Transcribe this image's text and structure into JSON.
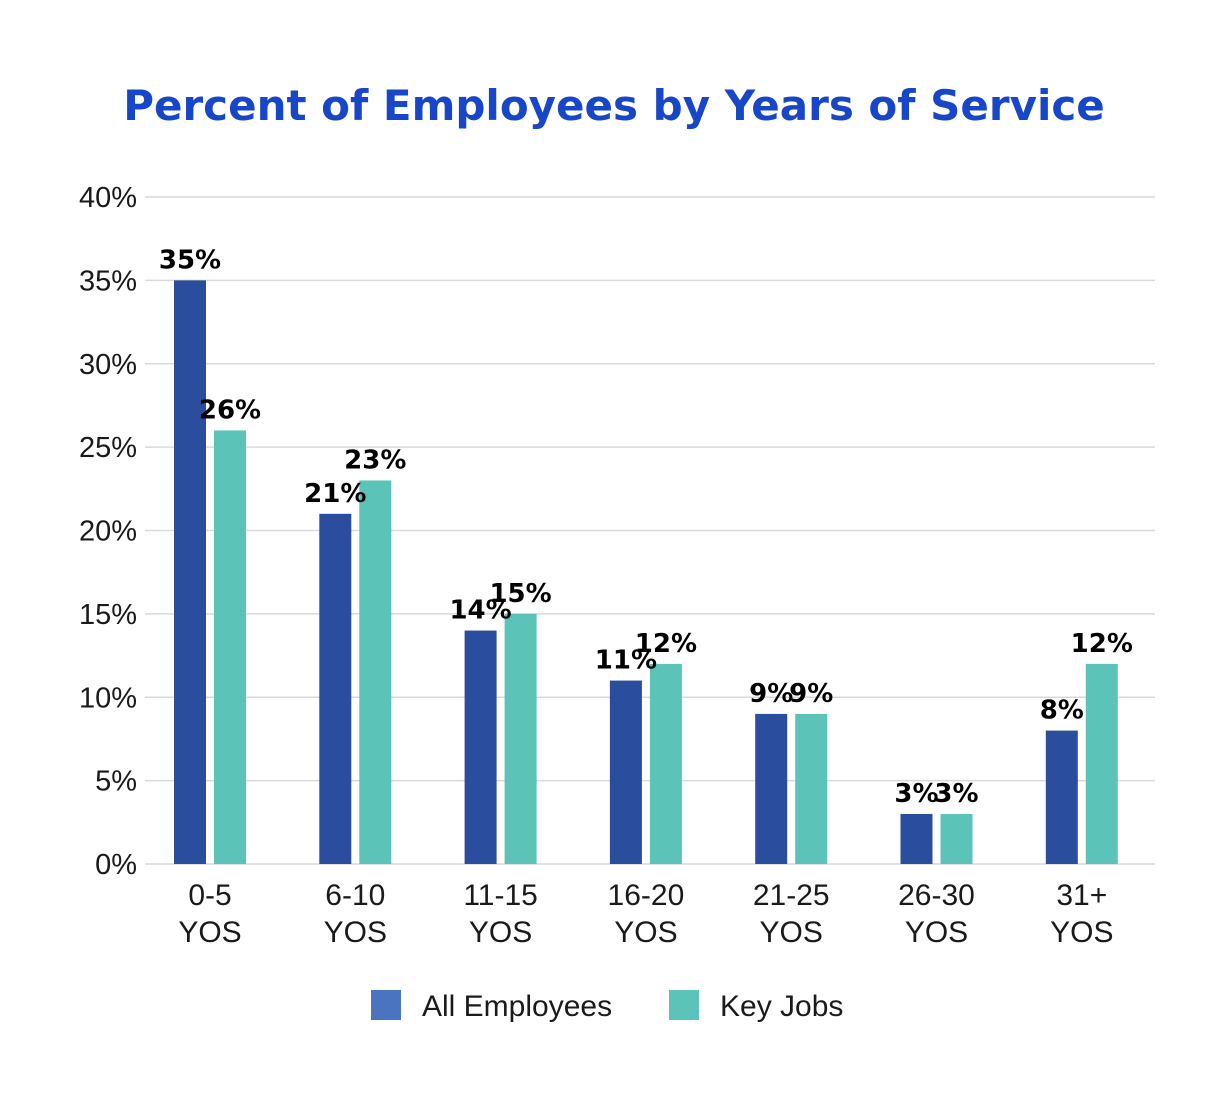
{
  "chart_data": {
    "type": "bar",
    "title": "Percent of Employees by Years of Service",
    "xlabel": "",
    "ylabel": "",
    "categories": [
      [
        "0-5",
        "YOS"
      ],
      [
        "6-10",
        "YOS"
      ],
      [
        "11-15",
        "YOS"
      ],
      [
        "16-20",
        "YOS"
      ],
      [
        "21-25",
        "YOS"
      ],
      [
        "26-30",
        "YOS"
      ],
      [
        "31+",
        "YOS"
      ]
    ],
    "series": [
      {
        "name": "All Employees",
        "color": "#2b4d9e",
        "values": [
          35,
          21,
          14,
          11,
          9,
          3,
          8
        ],
        "labels": [
          "35%",
          "21%",
          "14%",
          "11%",
          "9%",
          "3%",
          "8%"
        ]
      },
      {
        "name": "Key Jobs",
        "color": "#5bc3b8",
        "values": [
          26,
          23,
          15,
          12,
          9,
          3,
          12
        ],
        "labels": [
          "26%",
          "23%",
          "15%",
          "12%",
          "9%",
          "3%",
          "12%"
        ]
      }
    ],
    "ylim": [
      0,
      40
    ],
    "yticks": [
      0,
      5,
      10,
      15,
      20,
      25,
      30,
      35,
      40
    ],
    "ytick_labels": [
      "0%",
      "5%",
      "10%",
      "15%",
      "20%",
      "25%",
      "30%",
      "35%",
      "40%"
    ],
    "grid": true,
    "legend_position": "bottom-center"
  },
  "colors": {
    "title": "#1746c8",
    "grid": "#d9d9d9",
    "legend_all_employees": "#4a73c0",
    "legend_key_jobs": "#5bc3b8"
  }
}
